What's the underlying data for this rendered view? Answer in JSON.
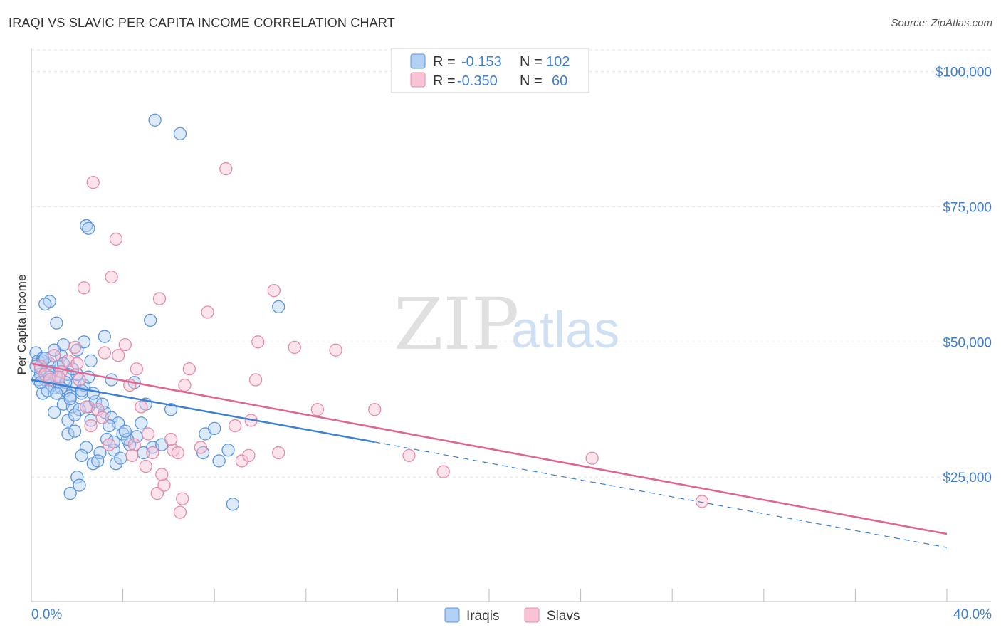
{
  "title": "IRAQI VS SLAVIC PER CAPITA INCOME CORRELATION CHART",
  "source": "Source: ZipAtlas.com",
  "watermark": {
    "zip": "ZIP",
    "atlas": "atlas"
  },
  "legend_top": [
    {
      "r_label": "R =",
      "r": "-0.153",
      "n_label": "N =",
      "n": "102",
      "fill": "#b3d0f5",
      "stroke": "#5b95e0"
    },
    {
      "r_label": "R =",
      "r": "-0.350",
      "n_label": "N =",
      "n": "60",
      "fill": "#f8c3d4",
      "stroke": "#e68aa8"
    }
  ],
  "legend_bottom": [
    {
      "label": "Iraqis",
      "fill": "#b3d0f5",
      "stroke": "#5b95e0"
    },
    {
      "label": "Slavs",
      "fill": "#f8c3d4",
      "stroke": "#e68aa8"
    }
  ],
  "colors": {
    "iraqi": "#3d7fd4",
    "slav": "#e0648f",
    "grid": "#e5e5e5"
  },
  "chart_data": {
    "type": "scatter",
    "xlabel": "",
    "ylabel": "Per Capita Income",
    "x_tick_labels": [
      "0.0%",
      "40.0%"
    ],
    "y_tick_values": [
      25000,
      50000,
      75000,
      100000
    ],
    "y_tick_labels": [
      "$25,000",
      "$50,000",
      "$75,000",
      "$100,000"
    ],
    "xlim": [
      0,
      40
    ],
    "ylim": [
      2000,
      104000
    ],
    "series": [
      {
        "name": "Iraqis",
        "trend": {
          "x0": 0,
          "y0": 43000,
          "x_solid_end": 15,
          "y_solid_end": 31500,
          "x1": 40,
          "y1": 12000
        },
        "points": [
          [
            0.2,
            48000
          ],
          [
            0.3,
            46500
          ],
          [
            0.4,
            45000
          ],
          [
            0.5,
            47000
          ],
          [
            0.6,
            43000
          ],
          [
            0.7,
            44500
          ],
          [
            0.8,
            46000
          ],
          [
            0.9,
            42000
          ],
          [
            0.4,
            44000
          ],
          [
            0.5,
            40500
          ],
          [
            1.0,
            41500
          ],
          [
            1.2,
            42500
          ],
          [
            1.5,
            41000
          ],
          [
            1.7,
            40000
          ],
          [
            1.1,
            43500
          ],
          [
            1.3,
            47500
          ],
          [
            1.4,
            49500
          ],
          [
            1.6,
            44000
          ],
          [
            0.8,
            57500
          ],
          [
            1.1,
            53500
          ],
          [
            0.6,
            57000
          ],
          [
            2.0,
            48500
          ],
          [
            2.3,
            50000
          ],
          [
            2.6,
            46500
          ],
          [
            1.9,
            42000
          ],
          [
            2.2,
            40500
          ],
          [
            2.5,
            38000
          ],
          [
            2.8,
            39000
          ],
          [
            1.4,
            38500
          ],
          [
            1.8,
            38000
          ],
          [
            2.1,
            37500
          ],
          [
            3.2,
            37000
          ],
          [
            3.5,
            36000
          ],
          [
            3.8,
            35000
          ],
          [
            1.6,
            33000
          ],
          [
            1.9,
            33500
          ],
          [
            2.4,
            30500
          ],
          [
            3.0,
            29500
          ],
          [
            3.3,
            32000
          ],
          [
            3.6,
            30000
          ],
          [
            4.0,
            33000
          ],
          [
            4.3,
            31000
          ],
          [
            4.6,
            32500
          ],
          [
            2.2,
            29000
          ],
          [
            2.7,
            27500
          ],
          [
            2.9,
            28000
          ],
          [
            3.7,
            27500
          ],
          [
            3.9,
            28500
          ],
          [
            4.9,
            29500
          ],
          [
            5.3,
            30500
          ],
          [
            2.0,
            25000
          ],
          [
            2.1,
            23500
          ],
          [
            1.7,
            22000
          ],
          [
            5.2,
            54000
          ],
          [
            5.4,
            91000
          ],
          [
            6.5,
            88500
          ],
          [
            2.4,
            71500
          ],
          [
            2.5,
            71000
          ],
          [
            3.2,
            51000
          ],
          [
            3.5,
            43000
          ],
          [
            4.5,
            42500
          ],
          [
            5.0,
            38500
          ],
          [
            6.1,
            37500
          ],
          [
            7.6,
            33000
          ],
          [
            8.0,
            34000
          ],
          [
            8.2,
            28000
          ],
          [
            8.6,
            30000
          ],
          [
            8.8,
            20000
          ],
          [
            10.8,
            56500
          ],
          [
            7.5,
            29500
          ],
          [
            1.0,
            37000
          ],
          [
            2.6,
            35500
          ],
          [
            3.1,
            38500
          ],
          [
            4.8,
            35000
          ],
          [
            0.3,
            43000
          ],
          [
            0.9,
            44500
          ],
          [
            1.2,
            45500
          ],
          [
            1.5,
            42500
          ],
          [
            2.0,
            44000
          ],
          [
            2.3,
            42000
          ],
          [
            0.7,
            41000
          ],
          [
            1.8,
            45000
          ],
          [
            0.5,
            46500
          ],
          [
            1.3,
            41500
          ],
          [
            1.6,
            35500
          ],
          [
            1.1,
            40500
          ],
          [
            2.7,
            40500
          ],
          [
            1.9,
            36500
          ],
          [
            3.4,
            34500
          ],
          [
            4.2,
            32000
          ],
          [
            0.2,
            45500
          ],
          [
            0.6,
            47000
          ],
          [
            0.4,
            42500
          ],
          [
            1.0,
            48500
          ],
          [
            2.5,
            43500
          ],
          [
            3.6,
            31500
          ],
          [
            1.4,
            46000
          ],
          [
            0.8,
            43500
          ],
          [
            2.2,
            41000
          ],
          [
            1.7,
            39500
          ],
          [
            5.7,
            31000
          ],
          [
            4.1,
            33500
          ]
        ]
      },
      {
        "name": "Slavs",
        "trend": {
          "x0": 0,
          "y0": 46000,
          "x1": 40,
          "y1": 14500
        },
        "points": [
          [
            0.4,
            45500
          ],
          [
            0.6,
            44000
          ],
          [
            0.8,
            43000
          ],
          [
            1.0,
            47500
          ],
          [
            1.3,
            44500
          ],
          [
            1.6,
            46500
          ],
          [
            1.9,
            49000
          ],
          [
            2.1,
            43000
          ],
          [
            2.4,
            38000
          ],
          [
            2.6,
            34500
          ],
          [
            2.9,
            37500
          ],
          [
            3.1,
            36000
          ],
          [
            2.3,
            60000
          ],
          [
            2.7,
            79500
          ],
          [
            3.5,
            62000
          ],
          [
            3.7,
            69000
          ],
          [
            3.2,
            48000
          ],
          [
            3.8,
            47500
          ],
          [
            4.1,
            49500
          ],
          [
            4.3,
            42000
          ],
          [
            4.6,
            45000
          ],
          [
            4.8,
            38000
          ],
          [
            4.5,
            31000
          ],
          [
            4.4,
            29000
          ],
          [
            5.1,
            33000
          ],
          [
            5.3,
            29500
          ],
          [
            5.0,
            27000
          ],
          [
            5.5,
            22000
          ],
          [
            5.8,
            23500
          ],
          [
            5.7,
            25500
          ],
          [
            6.2,
            30000
          ],
          [
            6.4,
            29500
          ],
          [
            6.1,
            32000
          ],
          [
            6.7,
            42000
          ],
          [
            6.9,
            45000
          ],
          [
            6.6,
            21000
          ],
          [
            6.5,
            18500
          ],
          [
            7.4,
            30500
          ],
          [
            7.7,
            55500
          ],
          [
            8.5,
            82000
          ],
          [
            8.9,
            34500
          ],
          [
            9.2,
            28000
          ],
          [
            9.5,
            29000
          ],
          [
            9.8,
            43000
          ],
          [
            9.9,
            50000
          ],
          [
            10.6,
            59500
          ],
          [
            10.8,
            29500
          ],
          [
            9.6,
            35500
          ],
          [
            11.5,
            49000
          ],
          [
            12.5,
            37500
          ],
          [
            13.3,
            48500
          ],
          [
            15.0,
            37500
          ],
          [
            16.5,
            29000
          ],
          [
            18.0,
            26000
          ],
          [
            24.5,
            28500
          ],
          [
            29.3,
            20500
          ],
          [
            1.2,
            43500
          ],
          [
            2.0,
            46000
          ],
          [
            5.6,
            58000
          ],
          [
            3.4,
            31000
          ]
        ]
      }
    ]
  }
}
